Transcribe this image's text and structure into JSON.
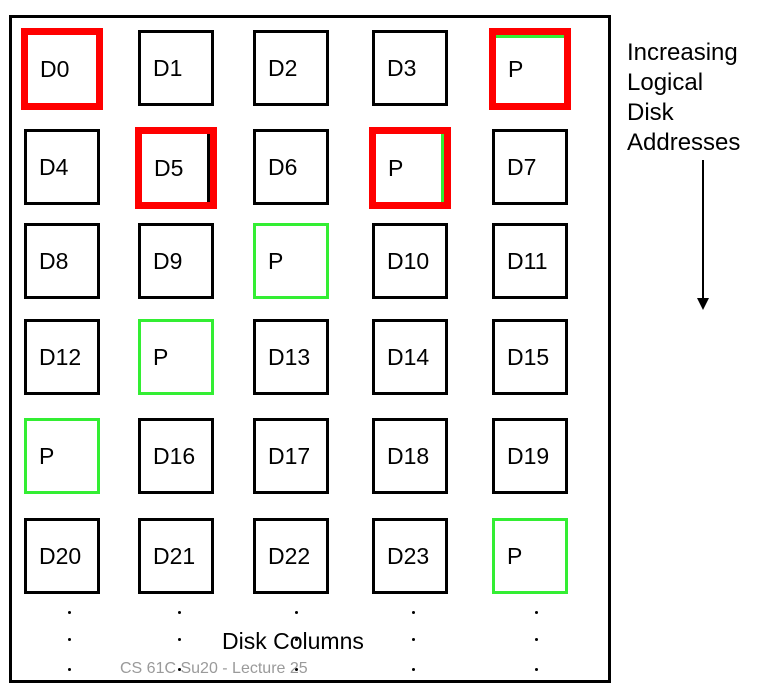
{
  "side_label": {
    "lines": [
      "Increasing",
      "Logical",
      "Disk",
      "Addresses"
    ]
  },
  "disk_columns_label": "Disk Columns",
  "footer": "CS 61C Su20 - Lecture 25",
  "colors": {
    "highlight_red": "#ff0000",
    "parity_green": "#33ee33"
  },
  "rows": [
    [
      {
        "label": "D0",
        "style": "red"
      },
      {
        "label": "D1"
      },
      {
        "label": "D2"
      },
      {
        "label": "D3"
      },
      {
        "label": "P",
        "style": "red",
        "green": "top"
      }
    ],
    [
      {
        "label": "D4"
      },
      {
        "label": "D5",
        "style": "red",
        "black": "right"
      },
      {
        "label": "D6"
      },
      {
        "label": "P",
        "style": "red",
        "green": "right"
      },
      {
        "label": "D7"
      }
    ],
    [
      {
        "label": "D8"
      },
      {
        "label": "D9"
      },
      {
        "label": "P",
        "style": "green"
      },
      {
        "label": "D10"
      },
      {
        "label": "D11"
      }
    ],
    [
      {
        "label": "D12"
      },
      {
        "label": "P",
        "style": "green"
      },
      {
        "label": "D13"
      },
      {
        "label": "D14"
      },
      {
        "label": "D15"
      }
    ],
    [
      {
        "label": "P",
        "style": "green"
      },
      {
        "label": "D16"
      },
      {
        "label": "D17"
      },
      {
        "label": "D18"
      },
      {
        "label": "D19"
      }
    ],
    [
      {
        "label": "D20"
      },
      {
        "label": "D21"
      },
      {
        "label": "D22"
      },
      {
        "label": "D23"
      },
      {
        "label": "P",
        "style": "green"
      }
    ]
  ]
}
